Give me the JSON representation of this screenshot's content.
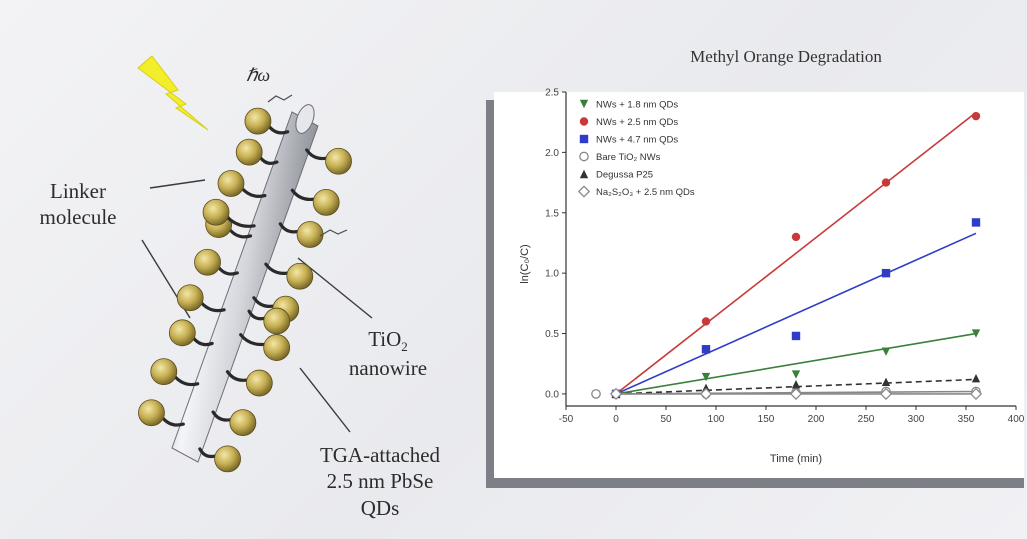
{
  "diagram": {
    "labels": {
      "hv": "ℏω",
      "linker_l1": "Linker",
      "linker_l2": "molecule",
      "tio2_l1": "TiO",
      "tio2_sub": "2",
      "tio2_l2": "nanowire",
      "tga_l1": "TGA-attached",
      "tga_l2": "2.5 nm PbSe",
      "tga_l3": "QDs"
    },
    "colors": {
      "wire": "#c9cbd2",
      "qd": "#c9b35a",
      "linker": "#2a2a2a",
      "lightning": "#f2ee2a"
    }
  },
  "chart_data": {
    "type": "scatter",
    "title": "Methyl Orange Degradation",
    "xlabel": "Time (min)",
    "ylabel": "ln(C₀/C)",
    "xlim": [
      -50,
      400
    ],
    "ylim": [
      -0.1,
      2.5
    ],
    "xticks": [
      "-50",
      "0",
      "50",
      "100",
      "150",
      "200",
      "250",
      "300",
      "350",
      "400"
    ],
    "yticks": [
      "0.0",
      "0.5",
      "1.0",
      "1.5",
      "2.0",
      "2.5"
    ],
    "legend_position": "top-left",
    "series": [
      {
        "name": "NWs + 1.8 nm QDs",
        "color": "#3a7f3a",
        "marker": "triangle-down",
        "x": [
          0,
          90,
          180,
          270,
          360
        ],
        "y": [
          0.0,
          0.14,
          0.16,
          0.35,
          0.5
        ],
        "fit": [
          [
            0,
            0.0
          ],
          [
            360,
            0.5
          ]
        ]
      },
      {
        "name": "NWs + 2.5 nm QDs",
        "color": "#c83a3a",
        "marker": "circle",
        "x": [
          0,
          90,
          180,
          270,
          360
        ],
        "y": [
          0.0,
          0.6,
          1.3,
          1.75,
          2.3
        ],
        "fit": [
          [
            0,
            0.0
          ],
          [
            360,
            2.33
          ]
        ]
      },
      {
        "name": "NWs + 4.7 nm QDs",
        "color": "#2e3cc8",
        "marker": "square",
        "x": [
          0,
          90,
          180,
          270,
          360
        ],
        "y": [
          0.0,
          0.37,
          0.48,
          1.0,
          1.42
        ],
        "fit": [
          [
            0,
            0.0
          ],
          [
            360,
            1.33
          ]
        ]
      },
      {
        "name": "Bare TiO₂ NWs",
        "color": "#888888",
        "marker": "circle-open",
        "x": [
          -20,
          0,
          90,
          180,
          270,
          360
        ],
        "y": [
          0.0,
          0.0,
          0.0,
          0.01,
          0.02,
          0.02
        ],
        "fit": [
          [
            0,
            0.0
          ],
          [
            360,
            0.02
          ]
        ]
      },
      {
        "name": "Degussa P25",
        "color": "#333333",
        "marker": "triangle-up",
        "x": [
          0,
          90,
          180,
          270,
          360
        ],
        "y": [
          0.0,
          0.05,
          0.08,
          0.1,
          0.13
        ],
        "fit": [
          [
            0,
            0.0
          ],
          [
            360,
            0.12
          ]
        ]
      },
      {
        "name": "Na₂S₂O₃ + 2.5 nm QDs",
        "color": "#8a8a8a",
        "marker": "diamond-open",
        "x": [
          0,
          90,
          180,
          270,
          360
        ],
        "y": [
          0.0,
          0.0,
          0.0,
          0.0,
          0.0
        ],
        "fit": [
          [
            0,
            0.0
          ],
          [
            360,
            0.0
          ]
        ]
      }
    ]
  }
}
